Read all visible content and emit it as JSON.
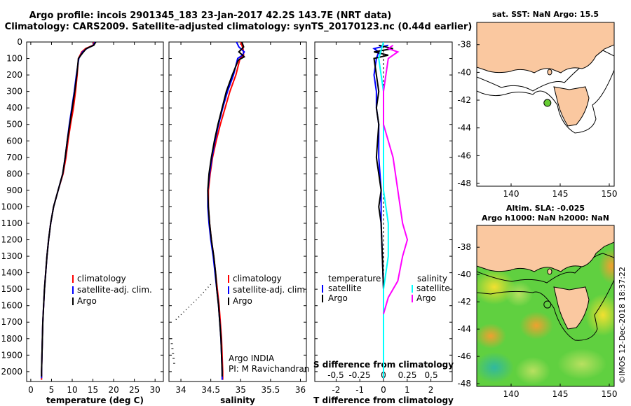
{
  "title_line1": "Argo profile: incois 2901345_183 23-Jan-2017 42.2S 143.7E (NRT data)",
  "title_line2": "Climatology: CARS2009. Satellite-adjusted climatology: synTS_20170123.nc (0.44d earlier)",
  "watermark": "©IMOS 12-Dec-2018 18:37:22",
  "colors": {
    "climatology": "#ff0000",
    "satellite": "#0000ff",
    "argo": "#000000",
    "sat_salinity": "#00ffff",
    "argo_salinity": "#ff00ff",
    "land": "#fac8a0"
  },
  "credit": {
    "line1": "Argo INDIA",
    "line2": "PI: M Ravichandran"
  },
  "chart_data": [
    {
      "type": "line",
      "id": "temperature",
      "xlabel": "temperature (deg C)",
      "ylabel": "",
      "xlim": [
        -1,
        32
      ],
      "ylim": [
        2060,
        0
      ],
      "xticks": [
        0,
        5,
        10,
        15,
        20,
        25,
        30
      ],
      "yticks": [
        0,
        100,
        200,
        300,
        400,
        500,
        600,
        700,
        800,
        900,
        1000,
        1100,
        1200,
        1300,
        1400,
        1500,
        1600,
        1700,
        1800,
        1900,
        2000
      ],
      "legend": [
        "climatology",
        "satellite-adj. clim.",
        "Argo"
      ],
      "series": [
        {
          "name": "climatology",
          "color": "#ff0000",
          "points": [
            [
              15.3,
              0
            ],
            [
              15,
              20
            ],
            [
              13.2,
              40
            ],
            [
              12.3,
              60
            ],
            [
              11.5,
              100
            ],
            [
              11.2,
              200
            ],
            [
              10.8,
              300
            ],
            [
              10.3,
              400
            ],
            [
              9.6,
              500
            ],
            [
              9,
              600
            ],
            [
              8.5,
              700
            ],
            [
              7.8,
              800
            ],
            [
              6.6,
              900
            ],
            [
              5.5,
              1000
            ],
            [
              4.8,
              1100
            ],
            [
              4.3,
              1200
            ],
            [
              3.9,
              1300
            ],
            [
              3.6,
              1400
            ],
            [
              3.3,
              1500
            ],
            [
              3.1,
              1600
            ],
            [
              2.9,
              1700
            ],
            [
              2.8,
              1800
            ],
            [
              2.7,
              1900
            ],
            [
              2.6,
              2000
            ],
            [
              2.6,
              2050
            ]
          ]
        },
        {
          "name": "satellite-adj. clim.",
          "color": "#0000ff",
          "points": [
            [
              15.5,
              0
            ],
            [
              15.1,
              20
            ],
            [
              13.5,
              40
            ],
            [
              12.5,
              60
            ],
            [
              11.6,
              100
            ],
            [
              11,
              200
            ],
            [
              10.5,
              300
            ],
            [
              9.9,
              400
            ],
            [
              9.3,
              500
            ],
            [
              8.8,
              600
            ],
            [
              8.3,
              700
            ],
            [
              7.7,
              800
            ],
            [
              6.6,
              900
            ],
            [
              5.5,
              1000
            ],
            [
              4.8,
              1100
            ],
            [
              4.3,
              1200
            ],
            [
              3.9,
              1300
            ],
            [
              3.6,
              1400
            ],
            [
              3.3,
              1500
            ],
            [
              3.1,
              1600
            ],
            [
              2.9,
              1700
            ],
            [
              2.8,
              1800
            ],
            [
              2.7,
              1900
            ],
            [
              2.6,
              2000
            ],
            [
              2.6,
              2040
            ]
          ]
        },
        {
          "name": "Argo",
          "color": "#000000",
          "points": [
            [
              15.7,
              0
            ],
            [
              15.2,
              20
            ],
            [
              13.4,
              40
            ],
            [
              12.4,
              70
            ],
            [
              11.5,
              100
            ],
            [
              11.1,
              200
            ],
            [
              10.6,
              300
            ],
            [
              10,
              400
            ],
            [
              9.4,
              500
            ],
            [
              8.8,
              600
            ],
            [
              8.3,
              700
            ],
            [
              7.7,
              800
            ],
            [
              6.6,
              900
            ],
            [
              5.5,
              1000
            ],
            [
              4.8,
              1100
            ],
            [
              4.3,
              1200
            ],
            [
              3.9,
              1300
            ],
            [
              3.6,
              1400
            ],
            [
              3.3,
              1500
            ],
            [
              3.1,
              1600
            ],
            [
              2.9,
              1700
            ],
            [
              2.8,
              1800
            ],
            [
              2.7,
              1900
            ],
            [
              2.6,
              2000
            ],
            [
              2.6,
              2030
            ]
          ]
        }
      ]
    },
    {
      "type": "line",
      "id": "salinity",
      "xlabel": "salinity",
      "xlim": [
        33.8,
        36.1
      ],
      "ylim": [
        2060,
        0
      ],
      "xticks": [
        34,
        34.5,
        35,
        35.5,
        36
      ],
      "legend": [
        "climatology",
        "satellite-adj. clim.",
        "Argo"
      ],
      "series": [
        {
          "name": "climatology",
          "color": "#ff0000",
          "points": [
            [
              35,
              0
            ],
            [
              35.04,
              40
            ],
            [
              35.05,
              80
            ],
            [
              34.99,
              100
            ],
            [
              34.92,
              200
            ],
            [
              34.82,
              300
            ],
            [
              34.74,
              400
            ],
            [
              34.66,
              500
            ],
            [
              34.59,
              600
            ],
            [
              34.53,
              700
            ],
            [
              34.49,
              800
            ],
            [
              34.46,
              900
            ],
            [
              34.46,
              1000
            ],
            [
              34.48,
              1100
            ],
            [
              34.51,
              1200
            ],
            [
              34.55,
              1300
            ],
            [
              34.58,
              1400
            ],
            [
              34.61,
              1500
            ],
            [
              34.64,
              1600
            ],
            [
              34.66,
              1700
            ],
            [
              34.68,
              1800
            ],
            [
              34.69,
              1900
            ],
            [
              34.7,
              2000
            ],
            [
              34.7,
              2050
            ]
          ]
        },
        {
          "name": "satellite-adj. clim.",
          "color": "#0000ff",
          "points": [
            [
              34.93,
              0
            ],
            [
              34.97,
              30
            ],
            [
              35.06,
              60
            ],
            [
              35.03,
              80
            ],
            [
              34.95,
              100
            ],
            [
              34.88,
              200
            ],
            [
              34.78,
              300
            ],
            [
              34.7,
              400
            ],
            [
              34.63,
              500
            ],
            [
              34.57,
              600
            ],
            [
              34.52,
              700
            ],
            [
              34.48,
              800
            ],
            [
              34.45,
              900
            ],
            [
              34.45,
              1000
            ],
            [
              34.47,
              1100
            ],
            [
              34.5,
              1200
            ],
            [
              34.54,
              1300
            ],
            [
              34.57,
              1400
            ],
            [
              34.6,
              1500
            ],
            [
              34.63,
              1600
            ],
            [
              34.65,
              1700
            ],
            [
              34.67,
              1800
            ],
            [
              34.68,
              1900
            ],
            [
              34.69,
              2000
            ],
            [
              34.69,
              2050
            ]
          ]
        },
        {
          "name": "Argo",
          "color": "#000000",
          "points": [
            [
              35.02,
              0
            ],
            [
              35.05,
              30
            ],
            [
              34.97,
              60
            ],
            [
              35.06,
              90
            ],
            [
              34.96,
              110
            ],
            [
              34.86,
              200
            ],
            [
              34.76,
              300
            ],
            [
              34.69,
              400
            ],
            [
              34.62,
              500
            ],
            [
              34.56,
              600
            ],
            [
              34.51,
              700
            ],
            [
              34.47,
              800
            ],
            [
              34.45,
              900
            ],
            [
              34.46,
              1000
            ],
            [
              34.48,
              1100
            ],
            [
              34.51,
              1200
            ],
            [
              34.55,
              1300
            ],
            [
              34.58,
              1400
            ],
            [
              34.6,
              1500
            ],
            [
              34.63,
              1600
            ],
            [
              34.65,
              1700
            ],
            [
              34.67,
              1800
            ],
            [
              34.68,
              1900
            ],
            [
              34.69,
              2000
            ],
            [
              34.69,
              2030
            ]
          ]
        }
      ],
      "dotted_series": {
        "name": "dotted",
        "color": "#000000",
        "points": [
          [
            34.5,
            1470
          ],
          [
            34.3,
            1550
          ],
          [
            34.1,
            1620
          ],
          [
            33.9,
            1690
          ]
        ]
      }
    },
    {
      "type": "line",
      "id": "difference",
      "xlabel": "T difference from climatology",
      "xlabel_top": "S difference from climatology",
      "xlim": [
        -2.9,
        2.9
      ],
      "ylim": [
        2060,
        0
      ],
      "xticks": [
        -2,
        -1,
        0,
        1,
        2
      ],
      "xticks_salinity": [
        -0.5,
        -0.25,
        0,
        0.25,
        0.5
      ],
      "legend_left_title": "temperature",
      "legend_right_title": "salinity",
      "legend_left": [
        "satellite",
        "Argo"
      ],
      "legend_right": [
        "satellite",
        "Argo"
      ],
      "series": [
        {
          "name": "temperature satellite",
          "color": "#0000ff",
          "points": [
            [
              0.2,
              20
            ],
            [
              -0.4,
              40
            ],
            [
              -0.2,
              60
            ],
            [
              -0.3,
              100
            ],
            [
              -0.4,
              200
            ],
            [
              -0.3,
              300
            ],
            [
              -0.3,
              400
            ],
            [
              -0.2,
              500
            ],
            [
              -0.2,
              700
            ],
            [
              -0.1,
              900
            ],
            [
              -0.1,
              1100
            ],
            [
              -0.05,
              1300
            ],
            [
              0,
              1500
            ],
            [
              0,
              1700
            ],
            [
              0,
              1900
            ],
            [
              0,
              2040
            ]
          ]
        },
        {
          "name": "temperature Argo",
          "color": "#000000",
          "points": [
            [
              -0.2,
              20
            ],
            [
              0.4,
              40
            ],
            [
              -0.4,
              60
            ],
            [
              0.2,
              80
            ],
            [
              -0.4,
              100
            ],
            [
              -0.3,
              200
            ],
            [
              -0.2,
              300
            ],
            [
              -0.3,
              400
            ],
            [
              -0.2,
              500
            ],
            [
              -0.3,
              700
            ],
            [
              -0.1,
              900
            ],
            [
              -0.2,
              1000
            ],
            [
              -0.1,
              1100
            ],
            [
              -0.05,
              1300
            ],
            [
              0,
              1500
            ],
            [
              0,
              1700
            ],
            [
              0,
              1900
            ],
            [
              0,
              2030
            ]
          ]
        },
        {
          "name": "salinity satellite",
          "color": "#00ffff",
          "points": [
            [
              0,
              0
            ],
            [
              -0.05,
              100
            ],
            [
              0,
              300
            ],
            [
              0,
              600
            ],
            [
              0,
              900
            ],
            [
              0.05,
              1100
            ],
            [
              0.05,
              1300
            ],
            [
              0,
              1500
            ],
            [
              0,
              1700
            ],
            [
              0,
              1900
            ],
            [
              0,
              2040
            ]
          ]
        },
        {
          "name": "salinity Argo",
          "color": "#ff00ff",
          "points": [
            [
              0.1,
              20
            ],
            [
              0.05,
              40
            ],
            [
              0.15,
              60
            ],
            [
              0.1,
              80
            ],
            [
              0.05,
              100
            ],
            [
              0,
              300
            ],
            [
              0,
              500
            ],
            [
              0.1,
              700
            ],
            [
              0.15,
              900
            ],
            [
              0.2,
              1100
            ],
            [
              0.25,
              1200
            ],
            [
              0.2,
              1300
            ],
            [
              0.15,
              1450
            ],
            [
              0.05,
              1550
            ],
            [
              0,
              1650
            ]
          ]
        }
      ]
    },
    {
      "type": "map",
      "id": "sst_map",
      "title": "sat. SST: NaN Argo: 15.5",
      "xlim": [
        136.5,
        150.5
      ],
      "ylim": [
        -48.2,
        -36.4
      ],
      "xticks": [
        140,
        145,
        150
      ],
      "yticks": [
        -38,
        -40,
        -42,
        -44,
        -46,
        -48
      ],
      "marker": {
        "lon": 143.7,
        "lat": -42.2,
        "color": "#66cc33"
      }
    },
    {
      "type": "heatmap",
      "id": "sla_map",
      "title_line1": "Altim. SLA: -0.025",
      "title_line2": "Argo h1000: NaN h2000: NaN",
      "xlim": [
        136.5,
        150.5
      ],
      "ylim": [
        -48.2,
        -36.4
      ],
      "xticks": [
        140,
        145,
        150
      ],
      "yticks": [
        -38,
        -40,
        -42,
        -44,
        -46,
        -48
      ],
      "marker": {
        "lon": 143.7,
        "lat": -42.2
      }
    }
  ]
}
